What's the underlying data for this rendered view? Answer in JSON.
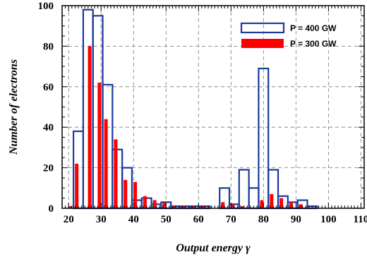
{
  "chart_data": {
    "type": "bar",
    "xlabel": "Output energy γ",
    "ylabel": "Number of electrons",
    "xlim": [
      18,
      111
    ],
    "ylim": [
      0,
      100
    ],
    "x_ticks": [
      20,
      30,
      40,
      50,
      60,
      70,
      80,
      90,
      100,
      110
    ],
    "y_ticks": [
      0,
      20,
      40,
      60,
      80,
      100
    ],
    "grid": true,
    "legend_position": "top-right",
    "series": [
      {
        "name": "P = 400 GW",
        "style": "outline",
        "color": "#1a3a9c",
        "bin_width": 3,
        "bins": [
          {
            "x": 23,
            "y": 38
          },
          {
            "x": 26,
            "y": 98
          },
          {
            "x": 29,
            "y": 95
          },
          {
            "x": 32,
            "y": 61
          },
          {
            "x": 35,
            "y": 29
          },
          {
            "x": 38,
            "y": 20
          },
          {
            "x": 41,
            "y": 4
          },
          {
            "x": 44,
            "y": 5
          },
          {
            "x": 47,
            "y": 2
          },
          {
            "x": 50,
            "y": 3
          },
          {
            "x": 53,
            "y": 1
          },
          {
            "x": 56,
            "y": 1
          },
          {
            "x": 59,
            "y": 1
          },
          {
            "x": 62,
            "y": 1
          },
          {
            "x": 68,
            "y": 10
          },
          {
            "x": 71,
            "y": 2
          },
          {
            "x": 74,
            "y": 19
          },
          {
            "x": 77,
            "y": 10
          },
          {
            "x": 80,
            "y": 69
          },
          {
            "x": 83,
            "y": 19
          },
          {
            "x": 86,
            "y": 6
          },
          {
            "x": 89,
            "y": 3
          },
          {
            "x": 92,
            "y": 4
          },
          {
            "x": 95,
            "y": 1
          }
        ]
      },
      {
        "name": "P = 300 GW",
        "style": "filled",
        "color": "#ff0000",
        "bar_width": 1.1,
        "bins": [
          {
            "x": 20.5,
            "y": 1
          },
          {
            "x": 22.5,
            "y": 22
          },
          {
            "x": 26.5,
            "y": 80
          },
          {
            "x": 29.5,
            "y": 62
          },
          {
            "x": 31.5,
            "y": 44
          },
          {
            "x": 34.5,
            "y": 34
          },
          {
            "x": 37.5,
            "y": 14
          },
          {
            "x": 40.5,
            "y": 13
          },
          {
            "x": 43.5,
            "y": 6
          },
          {
            "x": 46.5,
            "y": 4
          },
          {
            "x": 49.5,
            "y": 3
          },
          {
            "x": 52.5,
            "y": 1
          },
          {
            "x": 55.5,
            "y": 1
          },
          {
            "x": 58.5,
            "y": 1
          },
          {
            "x": 61.5,
            "y": 1
          },
          {
            "x": 67.5,
            "y": 3
          },
          {
            "x": 70.5,
            "y": 2
          },
          {
            "x": 73.5,
            "y": 1
          },
          {
            "x": 79.5,
            "y": 4
          },
          {
            "x": 82.5,
            "y": 7
          },
          {
            "x": 85.5,
            "y": 5
          },
          {
            "x": 88.5,
            "y": 3
          },
          {
            "x": 91.5,
            "y": 2
          }
        ]
      }
    ]
  }
}
